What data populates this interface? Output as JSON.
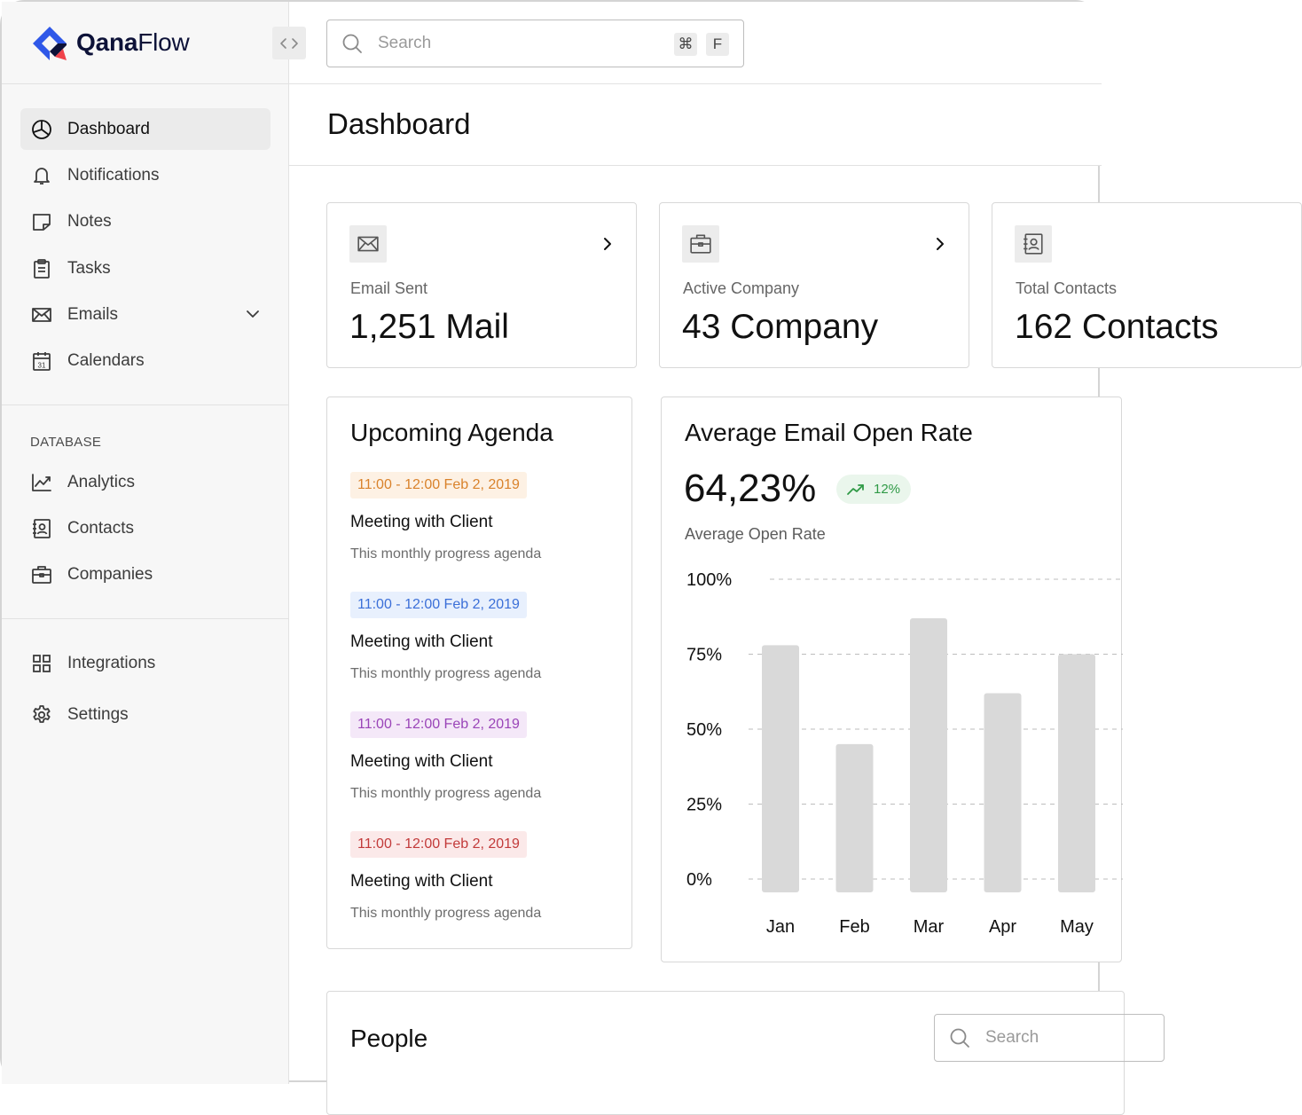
{
  "app": {
    "brand_bold": "Qana",
    "brand_light": "Flow",
    "brand_colors": {
      "blue": "#2f58e8",
      "navy": "#0d1238",
      "red": "#f0424a"
    }
  },
  "search": {
    "placeholder": "Search",
    "shortcut_modifier": "⌘",
    "shortcut_key": "F"
  },
  "sidebar": {
    "main_items": [
      {
        "label": "Dashboard",
        "icon": "dashboard-pie-icon",
        "active": true
      },
      {
        "label": "Notifications",
        "icon": "bell-icon"
      },
      {
        "label": "Notes",
        "icon": "note-icon"
      },
      {
        "label": "Tasks",
        "icon": "clipboard-icon"
      },
      {
        "label": "Emails",
        "icon": "envelope-icon",
        "expandable": true
      },
      {
        "label": "Calendars",
        "icon": "calendar-icon",
        "day": "31"
      }
    ],
    "section_label": "DATABASE",
    "database_items": [
      {
        "label": "Analytics",
        "icon": "trend-chart-icon"
      },
      {
        "label": "Contacts",
        "icon": "contact-book-icon"
      },
      {
        "label": "Companies",
        "icon": "briefcase-icon"
      }
    ],
    "bottom_items": [
      {
        "label": "Integrations",
        "icon": "grid-icon"
      },
      {
        "label": "Settings",
        "icon": "gear-icon"
      }
    ]
  },
  "page": {
    "title": "Dashboard"
  },
  "stats": [
    {
      "label": "Email Sent",
      "value": "1,251 Mail",
      "icon": "envelope-icon"
    },
    {
      "label": "Active Company",
      "value": "43 Company",
      "icon": "briefcase-icon"
    },
    {
      "label": "Total Contacts",
      "value": "162 Contacts",
      "icon": "contact-book-icon"
    }
  ],
  "agenda": {
    "title": "Upcoming Agenda",
    "items": [
      {
        "time": "11:00 - 12:00 Feb 2, 2019",
        "title": "Meeting with Client",
        "description": "This monthly progress agenda",
        "text_color": "#d9822b",
        "bg_color": "#fdf1e4"
      },
      {
        "time": "11:00 - 12:00 Feb 2, 2019",
        "title": "Meeting with Client",
        "description": "This monthly progress agenda",
        "text_color": "#3b6fd8",
        "bg_color": "#e8f0fd"
      },
      {
        "time": "11:00 - 12:00 Feb 2, 2019",
        "title": "Meeting with Client",
        "description": "This monthly progress agenda",
        "text_color": "#9a45b8",
        "bg_color": "#f4e8f8"
      },
      {
        "time": "11:00 - 12:00 Feb 2, 2019",
        "title": "Meeting with Client",
        "description": "This monthly progress agenda",
        "text_color": "#c23a3a",
        "bg_color": "#fbe9e9"
      }
    ]
  },
  "open_rate": {
    "title": "Average Email Open Rate",
    "value": "64,23%",
    "change": "12%",
    "subtitle": "Average Open Rate"
  },
  "chart_data": {
    "type": "bar",
    "title": "Average Email Open Rate",
    "categories": [
      "Jan",
      "Feb",
      "Mar",
      "Apr",
      "May"
    ],
    "values": [
      78,
      45,
      87,
      62,
      75
    ],
    "ylim": [
      0,
      100
    ],
    "yticks": [
      0,
      25,
      50,
      75,
      100
    ],
    "ytick_labels": [
      "0%",
      "25%",
      "50%",
      "75%",
      "100%"
    ],
    "grid": "dashed",
    "bar_color": "#d9d9d9",
    "xlabel": "",
    "ylabel": ""
  },
  "people": {
    "title": "People",
    "search_placeholder": "Search"
  }
}
